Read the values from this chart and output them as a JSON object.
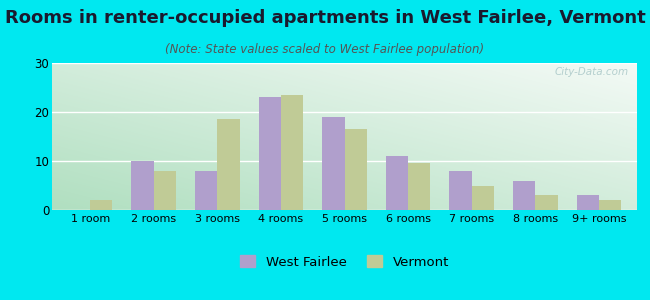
{
  "title": "Rooms in renter-occupied apartments in West Fairlee, Vermont",
  "subtitle": "(Note: State values scaled to West Fairlee population)",
  "categories": [
    "1 room",
    "2 rooms",
    "3 rooms",
    "4 rooms",
    "5 rooms",
    "6 rooms",
    "7 rooms",
    "8 rooms",
    "9+ rooms"
  ],
  "west_fairlee": [
    0,
    10,
    8,
    23,
    19,
    11,
    8,
    6,
    3
  ],
  "vermont": [
    2,
    8,
    18.5,
    23.5,
    16.5,
    9.5,
    5,
    3,
    2
  ],
  "bar_color_wf": "#b09fcc",
  "bar_color_vt": "#c0cb96",
  "ylim": [
    0,
    30
  ],
  "yticks": [
    0,
    10,
    20,
    30
  ],
  "bg_outer": "#00e8f0",
  "legend_label_wf": "West Fairlee",
  "legend_label_vt": "Vermont",
  "title_fontsize": 13,
  "subtitle_fontsize": 8.5,
  "watermark": "City-Data.com"
}
